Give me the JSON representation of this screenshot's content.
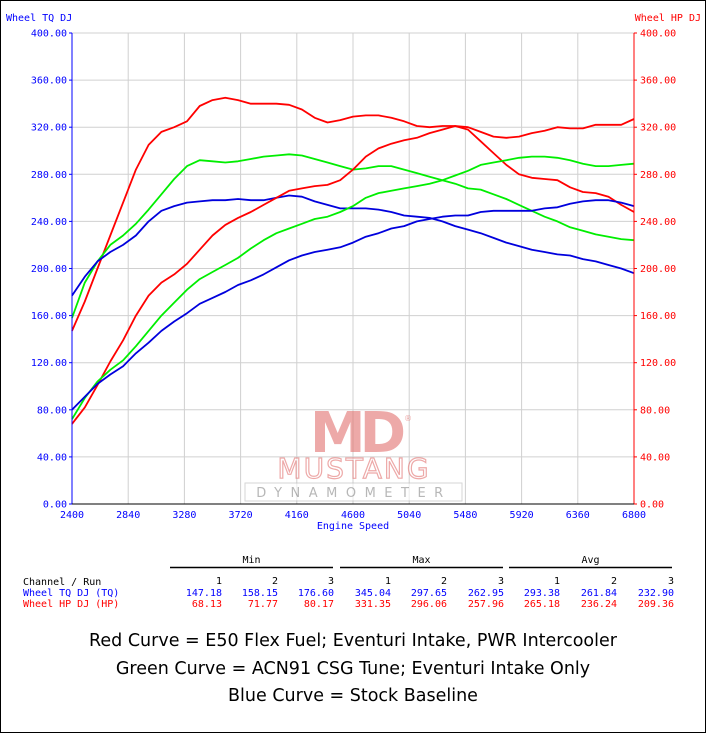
{
  "chart_data": {
    "type": "line",
    "xlabel": "Engine Speed",
    "ylabel_left": "Wheel TQ DJ",
    "ylabel_right": "Wheel HP DJ",
    "xlim": [
      2400,
      6800
    ],
    "ylim": [
      0,
      400
    ],
    "x_ticks": [
      "2400",
      "2840",
      "3280",
      "3720",
      "4160",
      "4600",
      "5040",
      "5480",
      "5920",
      "6360",
      "6800"
    ],
    "y_ticks": [
      "0.00",
      "40.00",
      "80.00",
      "120.00",
      "160.00",
      "200.00",
      "240.00",
      "280.00",
      "320.00",
      "360.00",
      "400.00"
    ],
    "grid": true,
    "colors": {
      "run1": "#ff0000",
      "run2": "#00ee00",
      "run3": "#0000dd",
      "left_axis": "#0000ff",
      "right_axis": "#ff0000",
      "grid": "#d0d0d0"
    },
    "series": [
      {
        "channel": "TQ",
        "run": 1,
        "x": [
          2400,
          2500,
          2600,
          2700,
          2800,
          2900,
          3000,
          3100,
          3200,
          3300,
          3400,
          3500,
          3600,
          3700,
          3800,
          3900,
          4000,
          4100,
          4200,
          4300,
          4400,
          4500,
          4600,
          4700,
          4800,
          4900,
          5000,
          5100,
          5200,
          5300,
          5400,
          5500,
          5600,
          5700,
          5800,
          5900,
          6000,
          6100,
          6200,
          6300,
          6400,
          6500,
          6600,
          6700,
          6800
        ],
        "y": [
          147,
          172,
          200,
          228,
          256,
          284,
          305,
          316,
          320,
          325,
          338,
          343,
          345,
          343,
          340,
          340,
          340,
          339,
          335,
          328,
          324,
          326,
          329,
          330,
          330,
          328,
          325,
          321,
          320,
          321,
          321,
          318,
          308,
          298,
          288,
          280,
          277,
          276,
          275,
          269,
          265,
          264,
          261,
          254,
          248
        ]
      },
      {
        "channel": "TQ",
        "run": 2,
        "x": [
          2400,
          2500,
          2600,
          2700,
          2800,
          2900,
          3000,
          3100,
          3200,
          3300,
          3400,
          3500,
          3600,
          3700,
          3800,
          3900,
          4000,
          4100,
          4200,
          4300,
          4400,
          4500,
          4600,
          4700,
          4800,
          4900,
          5000,
          5100,
          5200,
          5300,
          5400,
          5500,
          5600,
          5700,
          5800,
          5900,
          6000,
          6100,
          6200,
          6300,
          6400,
          6500,
          6600,
          6700,
          6800
        ],
        "y": [
          158,
          188,
          206,
          220,
          228,
          238,
          250,
          263,
          276,
          287,
          292,
          291,
          290,
          291,
          293,
          295,
          296,
          297,
          296,
          293,
          290,
          287,
          284,
          285,
          287,
          287,
          284,
          281,
          278,
          275,
          272,
          268,
          267,
          263,
          259,
          254,
          249,
          244,
          240,
          235,
          232,
          229,
          227,
          225,
          224
        ]
      },
      {
        "channel": "TQ",
        "run": 3,
        "x": [
          2400,
          2500,
          2600,
          2700,
          2800,
          2900,
          3000,
          3100,
          3200,
          3300,
          3400,
          3500,
          3600,
          3700,
          3800,
          3900,
          4000,
          4100,
          4200,
          4300,
          4400,
          4500,
          4600,
          4700,
          4800,
          4900,
          5000,
          5100,
          5200,
          5300,
          5400,
          5500,
          5600,
          5700,
          5800,
          5900,
          6000,
          6100,
          6200,
          6300,
          6400,
          6500,
          6600,
          6700,
          6800
        ],
        "y": [
          177,
          193,
          206,
          214,
          220,
          228,
          240,
          249,
          253,
          256,
          257,
          258,
          258,
          259,
          258,
          258,
          260,
          262,
          261,
          257,
          254,
          251,
          251,
          251,
          250,
          248,
          245,
          244,
          243,
          240,
          236,
          233,
          230,
          226,
          222,
          219,
          216,
          214,
          212,
          211,
          208,
          206,
          203,
          200,
          196
        ]
      },
      {
        "channel": "HP",
        "run": 1,
        "x": [
          2400,
          2500,
          2600,
          2700,
          2800,
          2900,
          3000,
          3100,
          3200,
          3300,
          3400,
          3500,
          3600,
          3700,
          3800,
          3900,
          4000,
          4100,
          4200,
          4300,
          4400,
          4500,
          4600,
          4700,
          4800,
          4900,
          5000,
          5100,
          5200,
          5300,
          5400,
          5500,
          5600,
          5700,
          5800,
          5900,
          6000,
          6100,
          6200,
          6300,
          6400,
          6500,
          6600,
          6700,
          6800
        ],
        "y": [
          68,
          82,
          101,
          121,
          139,
          160,
          177,
          188,
          195,
          204,
          216,
          228,
          237,
          243,
          248,
          254,
          260,
          266,
          268,
          270,
          271,
          275,
          284,
          295,
          302,
          306,
          309,
          311,
          315,
          318,
          321,
          320,
          316,
          312,
          311,
          312,
          315,
          317,
          320,
          319,
          319,
          322,
          322,
          322,
          327
        ]
      },
      {
        "channel": "HP",
        "run": 2,
        "x": [
          2400,
          2500,
          2600,
          2700,
          2800,
          2900,
          3000,
          3100,
          3200,
          3300,
          3400,
          3500,
          3600,
          3700,
          3800,
          3900,
          4000,
          4100,
          4200,
          4300,
          4400,
          4500,
          4600,
          4700,
          4800,
          4900,
          5000,
          5100,
          5200,
          5300,
          5400,
          5500,
          5600,
          5700,
          5800,
          5900,
          6000,
          6100,
          6200,
          6300,
          6400,
          6500,
          6600,
          6700,
          6800
        ],
        "y": [
          72,
          90,
          104,
          114,
          122,
          134,
          147,
          160,
          171,
          182,
          191,
          197,
          203,
          209,
          217,
          224,
          230,
          234,
          238,
          242,
          244,
          248,
          253,
          260,
          264,
          266,
          268,
          270,
          272,
          275,
          279,
          283,
          288,
          290,
          292,
          294,
          295,
          295,
          294,
          292,
          289,
          287,
          287,
          288,
          289
        ]
      },
      {
        "channel": "HP",
        "run": 3,
        "x": [
          2400,
          2500,
          2600,
          2700,
          2800,
          2900,
          3000,
          3100,
          3200,
          3300,
          3400,
          3500,
          3600,
          3700,
          3800,
          3900,
          4000,
          4100,
          4200,
          4300,
          4400,
          4500,
          4600,
          4700,
          4800,
          4900,
          5000,
          5100,
          5200,
          5300,
          5400,
          5500,
          5600,
          5700,
          5800,
          5900,
          6000,
          6100,
          6200,
          6300,
          6400,
          6500,
          6600,
          6700,
          6800
        ],
        "y": [
          80,
          91,
          102,
          110,
          117,
          128,
          137,
          147,
          155,
          162,
          170,
          175,
          180,
          186,
          190,
          195,
          201,
          207,
          211,
          214,
          216,
          218,
          222,
          227,
          230,
          234,
          236,
          240,
          242,
          244,
          245,
          245,
          248,
          249,
          249,
          249,
          249,
          251,
          252,
          255,
          257,
          258,
          258,
          256,
          253
        ]
      }
    ]
  },
  "logo": {
    "top": "MD",
    "reg": "®",
    "brand": "MUSTANG",
    "sub": "DYNAMOMETER"
  },
  "stats": {
    "groups": [
      "Min",
      "Max",
      "Avg"
    ],
    "header_label": "Channel / Run",
    "runs": [
      "1",
      "2",
      "3",
      "1",
      "2",
      "3",
      "1",
      "2",
      "3"
    ],
    "rows": [
      {
        "label": "Wheel TQ DJ (TQ)",
        "color": "#0000ff",
        "values": [
          "147.18",
          "158.15",
          "176.60",
          "345.04",
          "297.65",
          "262.95",
          "293.38",
          "261.84",
          "232.90"
        ]
      },
      {
        "label": "Wheel HP DJ (HP)",
        "color": "#ff0000",
        "values": [
          "68.13",
          "71.77",
          "80.17",
          "331.35",
          "296.06",
          "257.96",
          "265.18",
          "236.24",
          "209.36"
        ]
      }
    ]
  },
  "captions": [
    "Red Curve = E50 Flex Fuel; Eventuri Intake, PWR Intercooler",
    "Green Curve = ACN91 CSG Tune; Eventuri Intake Only",
    "Blue Curve = Stock Baseline"
  ]
}
